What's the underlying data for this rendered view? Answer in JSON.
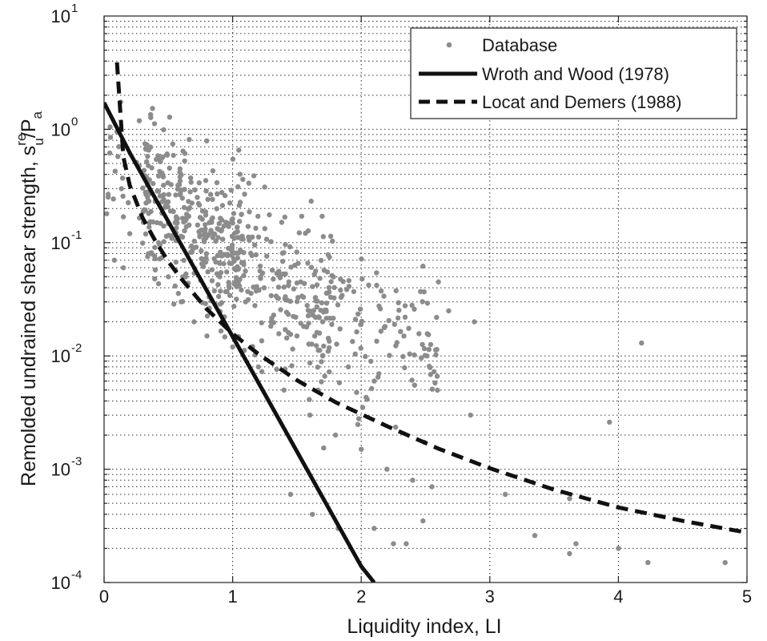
{
  "chart_data": {
    "type": "scatter",
    "title": "",
    "xlabel": "Liquidity index, LI",
    "ylabel": {
      "base": "Remolded undrained shear strength, s",
      "sup": "re",
      "sub": "u",
      "tail": "/P",
      "tail_sub": "a"
    },
    "xlim": [
      0,
      5
    ],
    "ylim": [
      0.0001,
      10
    ],
    "yscale": "log",
    "grid": "dotted, major and minor (y)",
    "x_ticks": [
      {
        "value": 0,
        "label": "0"
      },
      {
        "value": 1,
        "label": "1"
      },
      {
        "value": 2,
        "label": "2"
      },
      {
        "value": 3,
        "label": "3"
      },
      {
        "value": 4,
        "label": "4"
      },
      {
        "value": 5,
        "label": "5"
      }
    ],
    "y_ticks": [
      {
        "value": 0.0001,
        "base": "10",
        "exp": "-4"
      },
      {
        "value": 0.001,
        "base": "10",
        "exp": "-3"
      },
      {
        "value": 0.01,
        "base": "10",
        "exp": "-2"
      },
      {
        "value": 0.1,
        "base": "10",
        "exp": "-1"
      },
      {
        "value": 1,
        "base": "10",
        "exp": "0"
      },
      {
        "value": 10,
        "base": "10",
        "exp": "1"
      }
    ],
    "legend_position": "top-right",
    "series": [
      {
        "name": "Database",
        "kind": "scatter",
        "color": "#8c8c8c",
        "n_points": 700,
        "points": [
          [
            4.83,
            0.00015
          ],
          [
            4.23,
            0.00015
          ],
          [
            4.0,
            0.0002
          ],
          [
            3.62,
            0.00018
          ],
          [
            3.67,
            0.00022
          ],
          [
            3.35,
            0.00026
          ],
          [
            4.18,
            0.013
          ],
          [
            3.93,
            0.0026
          ],
          [
            2.68,
            0.025
          ],
          [
            2.85,
            0.003
          ],
          [
            2.88,
            0.02
          ],
          [
            2.6,
            0.045
          ],
          [
            2.48,
            0.062
          ],
          [
            2.12,
            0.042
          ],
          [
            0.05,
            0.85
          ],
          [
            0.1,
            0.95
          ],
          [
            0.02,
            0.18
          ],
          [
            0.08,
            0.07
          ],
          [
            0.15,
            0.06
          ],
          [
            0.2,
            0.12
          ],
          [
            1.45,
            0.0006
          ],
          [
            1.62,
            0.0004
          ],
          [
            1.82,
            0.0003
          ],
          [
            2.1,
            0.0003
          ],
          [
            2.25,
            0.00022
          ],
          [
            2.35,
            0.00022
          ],
          [
            2.48,
            0.00035
          ],
          [
            2.55,
            0.0007
          ],
          [
            3.12,
            0.0006
          ],
          [
            3.62,
            0.00055
          ],
          [
            0.35,
            0.08
          ],
          [
            0.5,
            0.05
          ],
          [
            0.6,
            0.03
          ],
          [
            0.7,
            0.02
          ],
          [
            0.8,
            0.015
          ],
          [
            1.0,
            0.012
          ],
          [
            1.2,
            0.008
          ],
          [
            1.4,
            0.005
          ],
          [
            1.6,
            0.003
          ],
          [
            1.8,
            0.002
          ],
          [
            2.0,
            0.0015
          ],
          [
            2.2,
            0.001
          ],
          [
            2.4,
            0.0008
          ],
          [
            0.9,
            0.05
          ],
          [
            1.1,
            0.03
          ],
          [
            1.3,
            0.02
          ],
          [
            1.5,
            0.015
          ],
          [
            1.7,
            0.01
          ],
          [
            1.9,
            0.008
          ],
          [
            2.1,
            0.006
          ]
        ]
      },
      {
        "name": "Wroth and Wood (1978)",
        "kind": "line",
        "style": "solid",
        "color": "#111111",
        "x": [
          0.0,
          0.2,
          0.5,
          0.8,
          1.1,
          1.4,
          1.7,
          2.0,
          2.1
        ],
        "y": [
          1.72,
          0.62,
          0.153,
          0.0376,
          0.00927,
          0.00229,
          0.000563,
          0.000139,
          0.0001
        ]
      },
      {
        "name": "Locat and Demers (1988)",
        "kind": "line",
        "style": "dashed",
        "color": "#111111",
        "x": [
          0.1,
          0.15,
          0.2,
          0.3,
          0.4,
          0.5,
          0.6,
          0.8,
          1.0,
          1.2,
          1.5,
          1.8,
          2.2,
          2.6,
          3.0,
          3.5,
          4.0,
          4.5,
          4.97
        ],
        "y": [
          3.9,
          0.57,
          0.32,
          0.165,
          0.103,
          0.068,
          0.048,
          0.0258,
          0.0157,
          0.0104,
          0.0061,
          0.0039,
          0.0024,
          0.00152,
          0.00102,
          0.00066,
          0.00046,
          0.00035,
          0.00028
        ]
      }
    ]
  }
}
